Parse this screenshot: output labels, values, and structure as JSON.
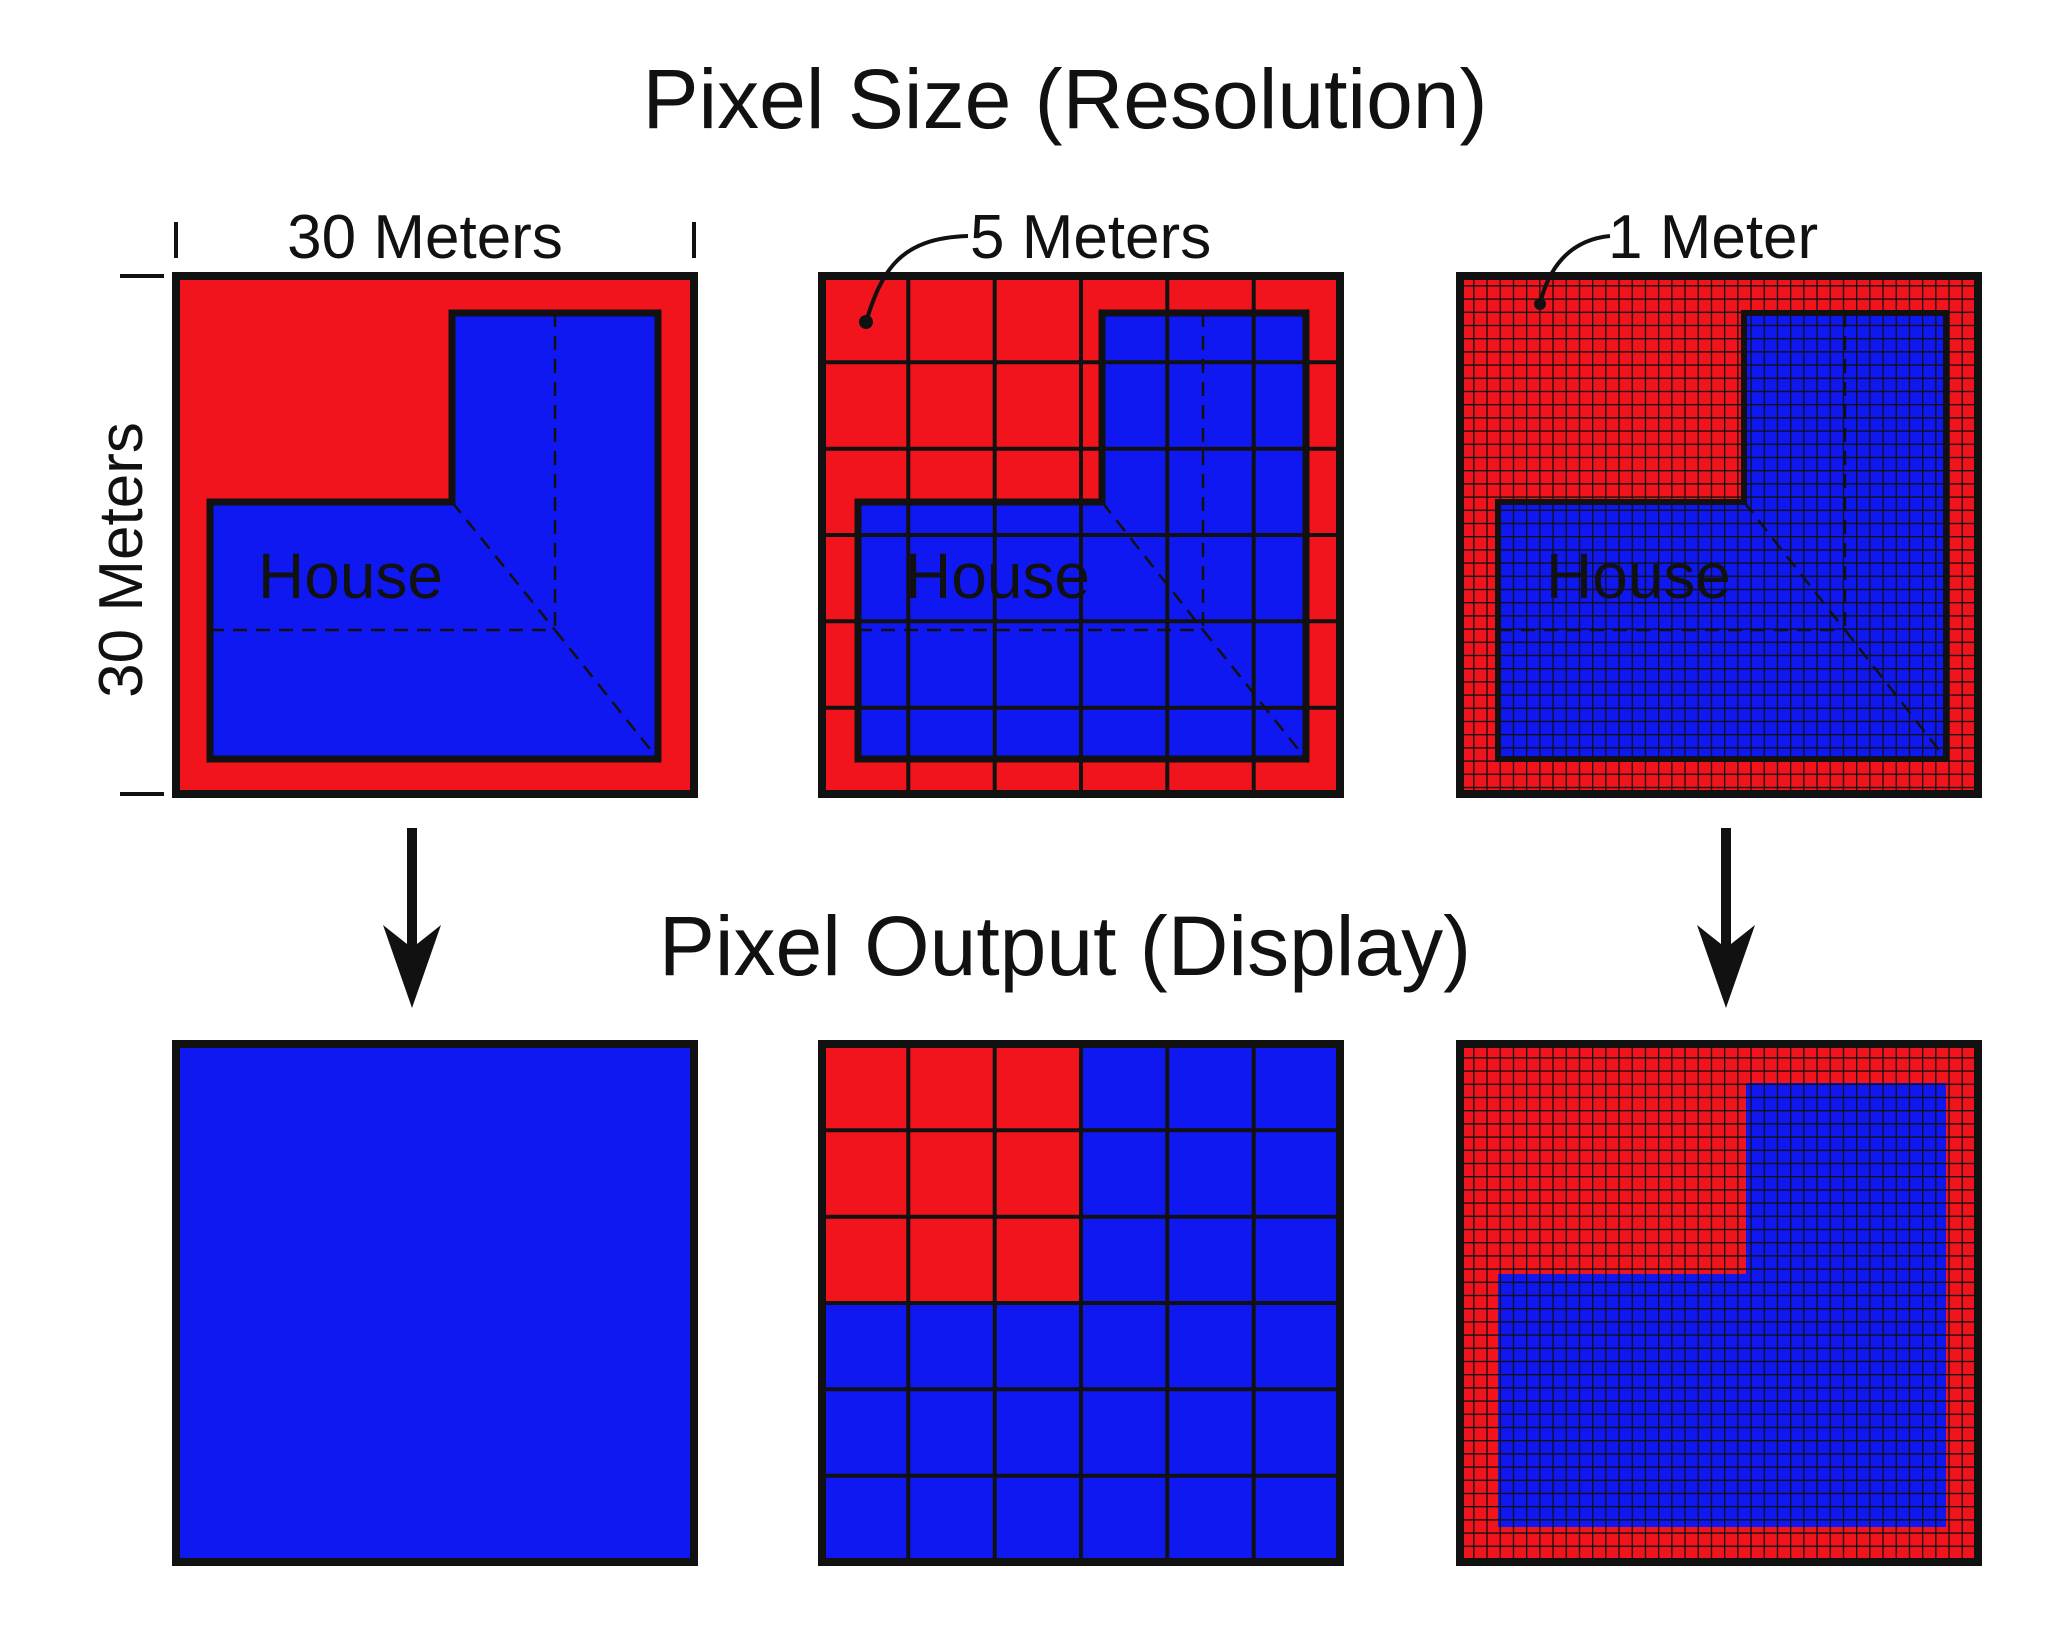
{
  "title": "Pixel Size (Resolution)",
  "subtitle": "Pixel Output (Display)",
  "labels": {
    "width_30": "30 Meters",
    "height_30": "30 Meters",
    "res_5": "5 Meters",
    "res_1": "1 Meter",
    "house": "House"
  },
  "colors": {
    "land": "#f2141c",
    "house": "#1018f2",
    "grid": "#111111",
    "background": "#ffffff"
  },
  "panels": {
    "input": [
      {
        "resolution_m": 30,
        "cells_per_side": 1,
        "grid": false
      },
      {
        "resolution_m": 5,
        "cells_per_side": 6,
        "grid": true
      },
      {
        "resolution_m": 1,
        "cells_per_side": 30,
        "grid": true
      }
    ],
    "output": [
      {
        "resolution_m": 30,
        "cells_per_side": 1,
        "fill": "house"
      },
      {
        "resolution_m": 5,
        "cells_per_side": 6,
        "red_block_cells": 3
      },
      {
        "resolution_m": 1,
        "cells_per_side": 30,
        "fill": "house-shape"
      }
    ]
  }
}
